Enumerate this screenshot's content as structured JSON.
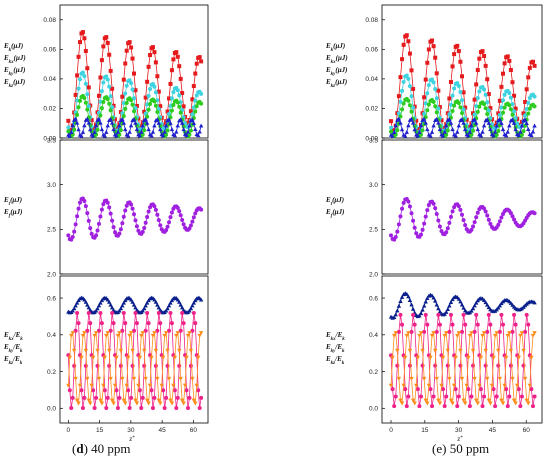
{
  "panels": [
    {
      "caption_letter": "d",
      "caption_text": "40 ppm",
      "x_axis": {
        "label": "z",
        "label_suffix": "*",
        "ticks": [
          0,
          15,
          30,
          45,
          60
        ],
        "range": [
          -4,
          67
        ]
      },
      "subplots": [
        {
          "range": [
            0,
            0.09
          ],
          "ticks": [
            "0.00",
            "0.02",
            "0.04",
            "0.06",
            "0.08"
          ],
          "tick_values": [
            0,
            0.02,
            0.04,
            0.06,
            0.08
          ],
          "legend_labels": [
            "E_k(μJ)",
            "E_kx(μJ)",
            "E_ky(μJ)",
            "E_kz(μJ)"
          ],
          "series": [
            {
              "color": "#e41a1c",
              "marker": "square",
              "amp": 0.035,
              "mean": 0.039,
              "amp_decay": 0.0022,
              "mean_decay": 0.0012,
              "period": 11.2,
              "phase": 1.2
            },
            {
              "color": "#3fd3e0",
              "marker": "circle",
              "amp": 0.022,
              "mean": 0.024,
              "amp_decay": 0.0018,
              "mean_decay": 0.0008,
              "period": 11.2,
              "phase": 1.25
            },
            {
              "color": "#2ecc20",
              "marker": "circle",
              "amp": 0.014,
              "mean": 0.015,
              "amp_decay": 0.0004,
              "mean_decay": 0.0004,
              "period": 11.2,
              "phase": 1.3
            },
            {
              "color": "#1f1fcc",
              "marker": "triangle",
              "amp": 0.006,
              "mean": 0.007,
              "amp_decay": 0.0001,
              "mean_decay": 0.0,
              "period": 5.6,
              "phase": 0.5
            }
          ]
        },
        {
          "range": [
            2,
            3.5
          ],
          "ticks": [
            "2.0",
            "2.5",
            "3.0",
            "3.5"
          ],
          "tick_values": [
            2.0,
            2.5,
            3.0,
            3.5
          ],
          "legend_labels": [
            "E_t(μJ)",
            "E_f(μJ)"
          ],
          "series": [
            {
              "color": "#a020e0",
              "marker": "circle",
              "amp": 0.24,
              "mean": 2.62,
              "amp_decay": 0.022,
              "mean_decay": 0.0,
              "period": 11.2,
              "phase": 1.2
            }
          ]
        },
        {
          "range": [
            -0.08,
            0.72
          ],
          "ticks": [
            "0.0",
            "0.2",
            "0.4",
            "0.6"
          ],
          "tick_values": [
            0,
            0.2,
            0.4,
            0.6
          ],
          "legend_labels": [
            "E_kx/E_k",
            "E_ky/E_k",
            "E_kz/E_k"
          ],
          "series": [
            {
              "color": "#0a1f8c",
              "marker": "triangle",
              "amp": 0.04,
              "mean": 0.56,
              "amp_decay": 0.0,
              "mean_decay": 0.0,
              "period": 11.2,
              "phase": 0.8
            },
            {
              "color": "#ee2288",
              "marker": "circle",
              "amp": 0.26,
              "mean": 0.26,
              "amp_decay": 0.0,
              "mean_decay": 0.0,
              "period": 5.6,
              "phase": 1.5
            },
            {
              "color": "#ff8c1a",
              "marker": "triangle-down",
              "amp": 0.2,
              "mean": 0.22,
              "amp_decay": 0.0,
              "mean_decay": 0.0,
              "period": 5.6,
              "phase": 4.64
            }
          ]
        }
      ]
    },
    {
      "caption_letter": "e",
      "caption_text": "50 ppm",
      "x_axis": {
        "label": "z",
        "label_suffix": "*",
        "ticks": [
          0,
          15,
          30,
          45,
          60
        ],
        "range": [
          -4,
          67
        ]
      },
      "subplots": [
        {
          "range": [
            0,
            0.09
          ],
          "ticks": [
            "0.00",
            "0.02",
            "0.04",
            "0.06",
            "0.08"
          ],
          "tick_values": [
            0,
            0.02,
            0.04,
            0.06,
            0.08
          ],
          "legend_labels": [
            "E_k(μJ)",
            "E_kx(μJ)",
            "E_ky(μJ)",
            "E_kz(μJ)"
          ],
          "series": [
            {
              "color": "#e41a1c",
              "marker": "square",
              "amp": 0.034,
              "mean": 0.038,
              "amp_decay": 0.0022,
              "mean_decay": 0.0014,
              "period": 11.2,
              "phase": 1.2
            },
            {
              "color": "#3fd3e0",
              "marker": "circle",
              "amp": 0.021,
              "mean": 0.023,
              "amp_decay": 0.0018,
              "mean_decay": 0.0008,
              "period": 11.2,
              "phase": 1.25
            },
            {
              "color": "#2ecc20",
              "marker": "circle",
              "amp": 0.013,
              "mean": 0.014,
              "amp_decay": 0.0004,
              "mean_decay": 0.0004,
              "period": 11.2,
              "phase": 1.3
            },
            {
              "color": "#1f1fcc",
              "marker": "triangle",
              "amp": 0.006,
              "mean": 0.007,
              "amp_decay": 0.0001,
              "mean_decay": 0.0,
              "period": 5.6,
              "phase": 0.5
            }
          ]
        },
        {
          "range": [
            2,
            3.5
          ],
          "ticks": [
            "2.0",
            "2.5",
            "3.0",
            "3.5"
          ],
          "tick_values": [
            2.0,
            2.5,
            3.0,
            3.5
          ],
          "legend_labels": [
            "E_t(μJ)",
            "E_f(μJ)"
          ],
          "series": [
            {
              "color": "#a020e0",
              "marker": "circle",
              "amp": 0.24,
              "mean": 2.62,
              "amp_decay": 0.03,
              "mean_decay": 0.0,
              "period": 11.2,
              "phase": 1.2
            }
          ]
        },
        {
          "range": [
            -0.08,
            0.72
          ],
          "ticks": [
            "0.0",
            "0.2",
            "0.4",
            "0.6"
          ],
          "tick_values": [
            0,
            0.2,
            0.4,
            0.6
          ],
          "legend_labels": [
            "E_kx/E_k",
            "E_ky/E_k",
            "E_kz/E_k"
          ],
          "series": [
            {
              "color": "#0a1f8c",
              "marker": "triangle",
              "amp": 0.07,
              "mean": 0.56,
              "amp_decay": 0.009,
              "mean_decay": 0.0,
              "period": 11.2,
              "phase": 0.8
            },
            {
              "color": "#ee2288",
              "marker": "circle",
              "amp": 0.25,
              "mean": 0.26,
              "amp_decay": 0.0,
              "mean_decay": 0.0,
              "period": 5.6,
              "phase": 1.5
            },
            {
              "color": "#ff8c1a",
              "marker": "triangle-down",
              "amp": 0.2,
              "mean": 0.22,
              "amp_decay": 0.0,
              "mean_decay": 0.0,
              "period": 5.6,
              "phase": 4.64
            }
          ]
        }
      ]
    }
  ],
  "chart_data": [
    {
      "type": "line",
      "panel": "(d) 40 ppm",
      "subplots": [
        {
          "legend": [
            "E_k(μJ)",
            "E_kx(μJ)",
            "E_ky(μJ)",
            "E_kz(μJ)"
          ],
          "ylim": [
            0,
            0.09
          ],
          "xlim": [
            -4,
            67
          ],
          "peaks": {
            "E_k": [
              0.074,
              0.071,
              0.066,
              0.062,
              0.058,
              0.054
            ],
            "E_kx": [
              0.046,
              0.043,
              0.04,
              0.038,
              0.035,
              0.033
            ],
            "E_ky": [
              0.029,
              0.028,
              0.027,
              0.026,
              0.025,
              0.024
            ],
            "E_kz": [
              0.013,
              0.013,
              0.012,
              0.012,
              0.012,
              0.012
            ]
          }
        },
        {
          "legend": [
            "E_t(μJ)",
            "E_f(μJ)"
          ],
          "ylim": [
            2.0,
            3.5
          ],
          "xlim": [
            -4,
            67
          ],
          "peaks": [
            2.86,
            2.84,
            2.82,
            2.8,
            2.78,
            2.76
          ],
          "troughs": [
            2.38,
            2.4,
            2.42,
            2.44,
            2.46,
            2.48
          ]
        },
        {
          "legend": [
            "E_kx/E_k",
            "E_ky/E_k",
            "E_kz/E_k"
          ],
          "ylim": [
            -0.08,
            0.72
          ],
          "xlim": [
            -4,
            67
          ],
          "levels": {
            "E_kx/E_k": [
              0.52,
              0.6
            ],
            "E_ky/E_k": [
              0.0,
              0.52
            ],
            "E_kz/E_k": [
              0.02,
              0.42
            ]
          }
        }
      ]
    },
    {
      "type": "line",
      "panel": "(e) 50 ppm",
      "subplots": [
        {
          "legend": [
            "E_k(μJ)",
            "E_kx(μJ)",
            "E_ky(μJ)",
            "E_kz(μJ)"
          ],
          "ylim": [
            0,
            0.09
          ],
          "xlim": [
            -4,
            67
          ],
          "peaks": {
            "E_k": [
              0.073,
              0.07,
              0.066,
              0.062,
              0.058,
              0.053
            ],
            "E_kx": [
              0.045,
              0.042,
              0.04,
              0.037,
              0.034,
              0.031
            ],
            "E_ky": [
              0.028,
              0.027,
              0.026,
              0.025,
              0.024,
              0.023
            ],
            "E_kz": [
              0.013,
              0.013,
              0.012,
              0.012,
              0.012,
              0.012
            ]
          }
        },
        {
          "legend": [
            "E_t(μJ)",
            "E_f(μJ)"
          ],
          "ylim": [
            2.0,
            3.5
          ],
          "xlim": [
            -4,
            67
          ],
          "peaks": [
            2.88,
            2.85,
            2.81,
            2.78,
            2.74,
            2.7
          ],
          "troughs": [
            2.38,
            2.4,
            2.43,
            2.45,
            2.47,
            2.5
          ]
        },
        {
          "legend": [
            "E_kx/E_k",
            "E_ky/E_k",
            "E_kz/E_k"
          ],
          "ylim": [
            -0.08,
            0.72
          ],
          "xlim": [
            -4,
            67
          ],
          "levels": {
            "E_kx/E_k": [
              0.42,
              0.68
            ],
            "E_ky/E_k": [
              0.0,
              0.52
            ],
            "E_kz/E_k": [
              0.02,
              0.42
            ]
          }
        }
      ]
    }
  ]
}
